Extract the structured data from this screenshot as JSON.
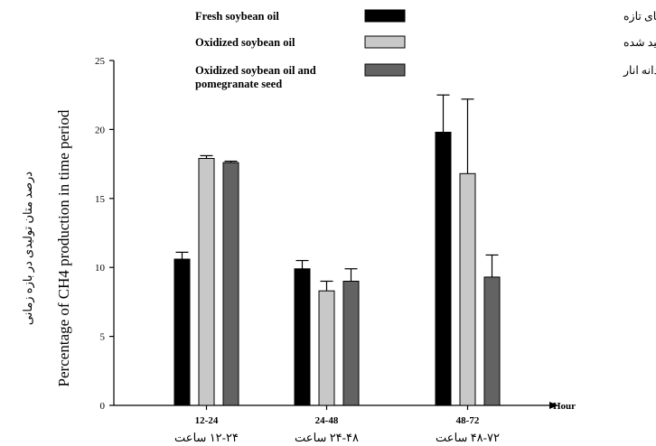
{
  "chart_data": {
    "type": "bar",
    "categories": [
      "12-24",
      "24-48",
      "48-72"
    ],
    "categories_fa": [
      "۱۲-۲۴ ساعت",
      "۲۴-۴۸ ساعت",
      "۴۸-۷۲ ساعت"
    ],
    "ylabel": "Percentage of CH4 production in time period",
    "ylabel_fa": "درصد متان تولیدی در بازه زمانی",
    "xunit": "Hour",
    "ylim": [
      0,
      25
    ],
    "yticks": [
      0,
      5,
      10,
      15,
      20,
      25
    ],
    "legend_position": "top",
    "series": [
      {
        "name": "Fresh soybean oil",
        "name_fa": "روغن سویای تازه",
        "color": "#000000",
        "values": [
          10.6,
          9.9,
          19.8
        ],
        "errors": [
          0.5,
          0.6,
          2.7
        ]
      },
      {
        "name": "Oxidized soybean oil",
        "name_fa": "روغن سویای اکسید شده",
        "color": "#c8c8c8",
        "values": [
          17.9,
          8.3,
          16.8
        ],
        "errors": [
          0.2,
          0.7,
          5.4
        ]
      },
      {
        "name": "Oxidized soybean oil and pomegranate seed",
        "name_fa": "روغن سویای اکسید شده و دانه انار",
        "color": "#636363",
        "values": [
          17.6,
          9.0,
          9.3
        ],
        "errors": [
          0.1,
          0.9,
          1.6
        ]
      }
    ]
  }
}
